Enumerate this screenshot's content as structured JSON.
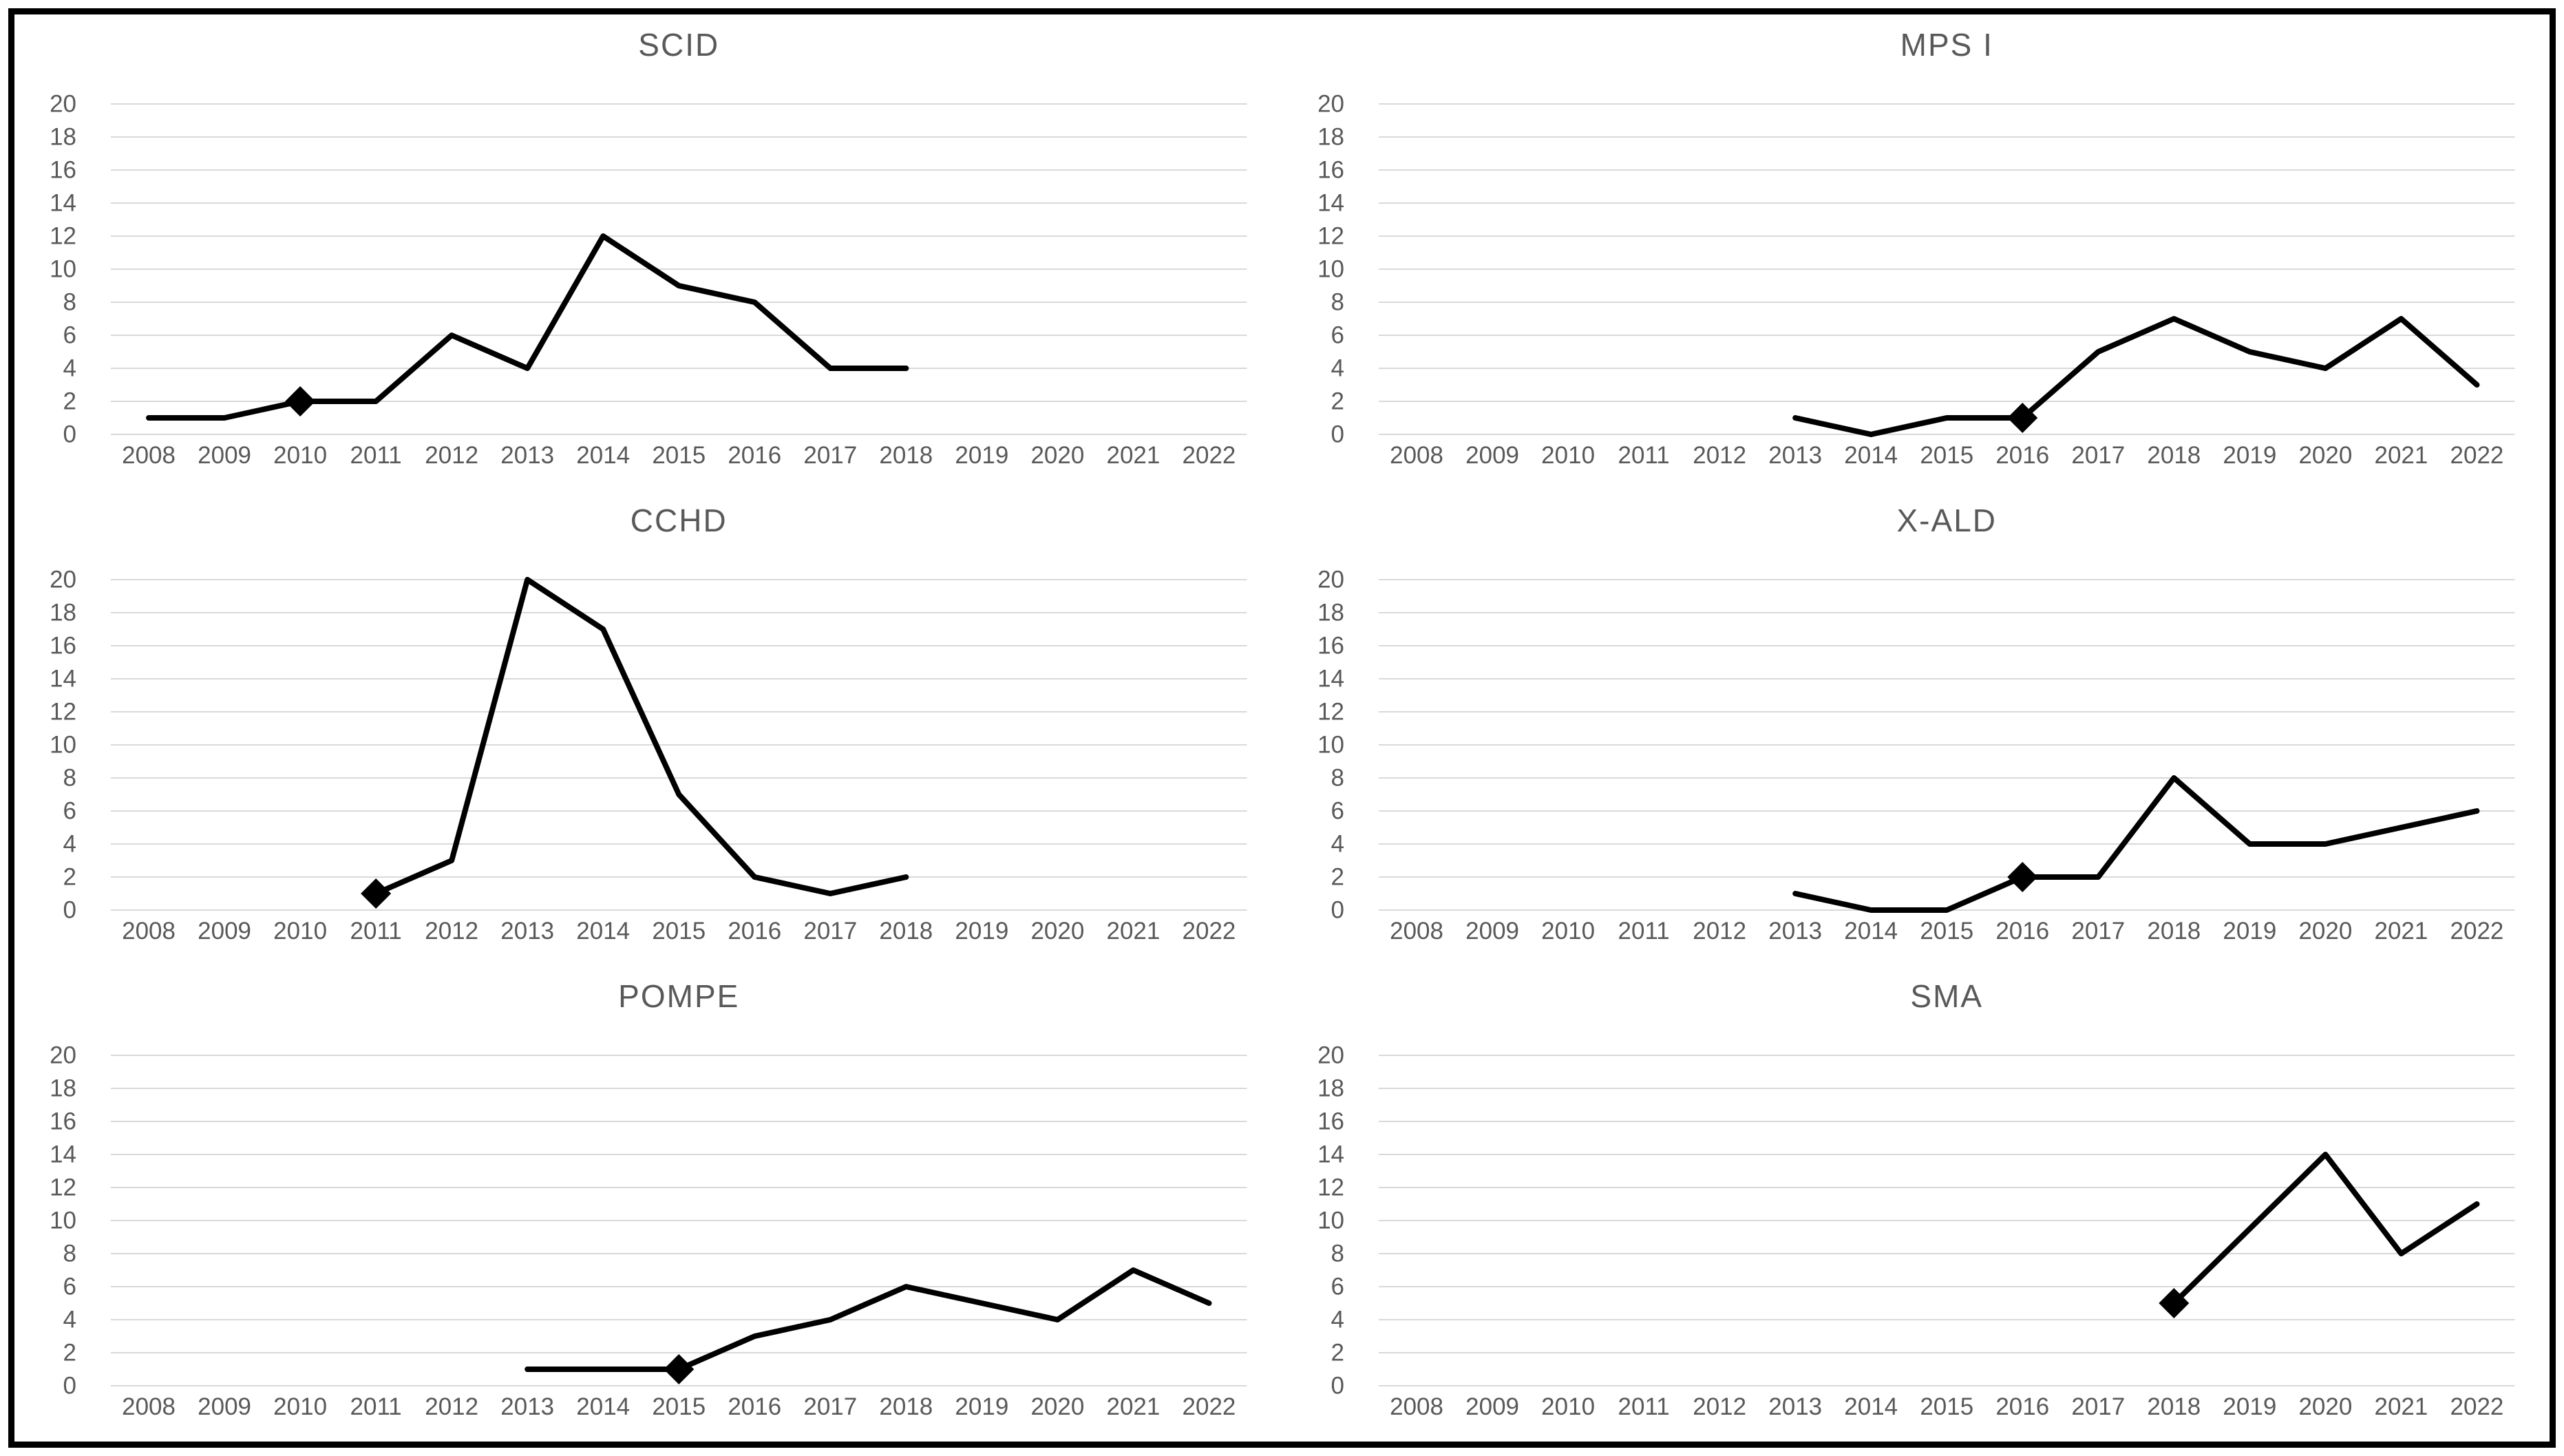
{
  "figure": {
    "description": "Six small-multiple line charts of yearly counts by screening condition",
    "background": "#ffffff",
    "frame_border_color": "#000000"
  },
  "axes": {
    "years": [
      "2008",
      "2009",
      "2010",
      "2011",
      "2012",
      "2013",
      "2014",
      "2015",
      "2016",
      "2017",
      "2018",
      "2019",
      "2020",
      "2021",
      "2022"
    ],
    "ylim": [
      0,
      20
    ],
    "ytick_step": 2,
    "grid": "horizontal-only",
    "legend": "none"
  },
  "style": {
    "line_color": "#000000",
    "line_width": 8,
    "marker_shape": "diamond",
    "marker_color": "#000000",
    "title_color": "#595959",
    "tick_color": "#595959",
    "gridline_color": "#d9d9d9"
  },
  "chart_data": [
    {
      "type": "line",
      "title": "SCID",
      "points": [
        [
          2008,
          1
        ],
        [
          2009,
          1
        ],
        [
          2010,
          2
        ],
        [
          2011,
          2
        ],
        [
          2012,
          6
        ],
        [
          2013,
          4
        ],
        [
          2014,
          12
        ],
        [
          2015,
          9
        ],
        [
          2016,
          8
        ],
        [
          2017,
          4
        ],
        [
          2018,
          4
        ]
      ],
      "marker": {
        "year": 2010,
        "value": 2
      }
    },
    {
      "type": "line",
      "title": "MPS I",
      "points": [
        [
          2013,
          1
        ],
        [
          2014,
          0
        ],
        [
          2015,
          1
        ],
        [
          2016,
          1
        ],
        [
          2017,
          5
        ],
        [
          2018,
          7
        ],
        [
          2019,
          5
        ],
        [
          2020,
          4
        ],
        [
          2021,
          7
        ],
        [
          2022,
          3
        ]
      ],
      "marker": {
        "year": 2016,
        "value": 1
      }
    },
    {
      "type": "line",
      "title": "CCHD",
      "points": [
        [
          2011,
          1
        ],
        [
          2012,
          3
        ],
        [
          2013,
          20
        ],
        [
          2014,
          17
        ],
        [
          2015,
          7
        ],
        [
          2016,
          2
        ],
        [
          2017,
          1
        ],
        [
          2018,
          2
        ]
      ],
      "marker": {
        "year": 2011,
        "value": 1
      }
    },
    {
      "type": "line",
      "title": "X-ALD",
      "points": [
        [
          2013,
          1
        ],
        [
          2014,
          0
        ],
        [
          2015,
          0
        ],
        [
          2016,
          2
        ],
        [
          2017,
          2
        ],
        [
          2018,
          8
        ],
        [
          2019,
          4
        ],
        [
          2020,
          4
        ],
        [
          2021,
          5
        ],
        [
          2022,
          6
        ]
      ],
      "marker": {
        "year": 2016,
        "value": 2
      }
    },
    {
      "type": "line",
      "title": "POMPE",
      "points": [
        [
          2013,
          1
        ],
        [
          2014,
          1
        ],
        [
          2015,
          1
        ],
        [
          2016,
          3
        ],
        [
          2017,
          4
        ],
        [
          2018,
          6
        ],
        [
          2019,
          5
        ],
        [
          2020,
          4
        ],
        [
          2021,
          7
        ],
        [
          2022,
          5
        ]
      ],
      "marker": {
        "year": 2015,
        "value": 1
      }
    },
    {
      "type": "line",
      "title": "SMA",
      "points": [
        [
          2018,
          5
        ],
        [
          2020,
          14
        ],
        [
          2021,
          8
        ],
        [
          2022,
          11
        ]
      ],
      "marker": {
        "year": 2018,
        "value": 5
      }
    }
  ]
}
